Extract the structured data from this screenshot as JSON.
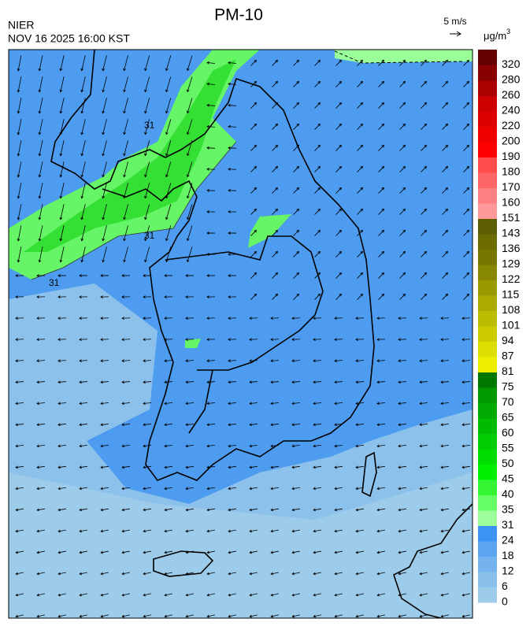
{
  "header": {
    "title": "PM-10",
    "agency": "NIER",
    "datetime": "NOV 16 2025 16:00 KST",
    "wind_scale": "5 m/s",
    "unit": "μg/m",
    "unit_exponent": "3"
  },
  "contour_labels": [
    31,
    31,
    31
  ],
  "colorbar": {
    "levels": [
      0,
      6,
      12,
      18,
      24,
      31,
      35,
      40,
      45,
      50,
      55,
      60,
      65,
      70,
      75,
      81,
      87,
      94,
      101,
      108,
      115,
      122,
      129,
      136,
      143,
      151,
      160,
      170,
      180,
      190,
      200,
      220,
      240,
      260,
      280,
      320
    ],
    "colors": [
      "#9dcbea",
      "#8ac0ec",
      "#74b3ee",
      "#5aa4f0",
      "#3b93f3",
      "#9cff9c",
      "#66ff66",
      "#33f533",
      "#00ee00",
      "#00dd00",
      "#00cc00",
      "#00bb00",
      "#00aa00",
      "#009900",
      "#007700",
      "#eeee00",
      "#dddd00",
      "#cccc00",
      "#bbbb00",
      "#aaaa00",
      "#999900",
      "#888800",
      "#777700",
      "#6b6b00",
      "#5c5c00",
      "#ff9999",
      "#ff8080",
      "#ff6666",
      "#ff4d4d",
      "#ff0000",
      "#ee0000",
      "#dd0000",
      "#cc0000",
      "#aa0000",
      "#880000",
      "#660000"
    ]
  }
}
